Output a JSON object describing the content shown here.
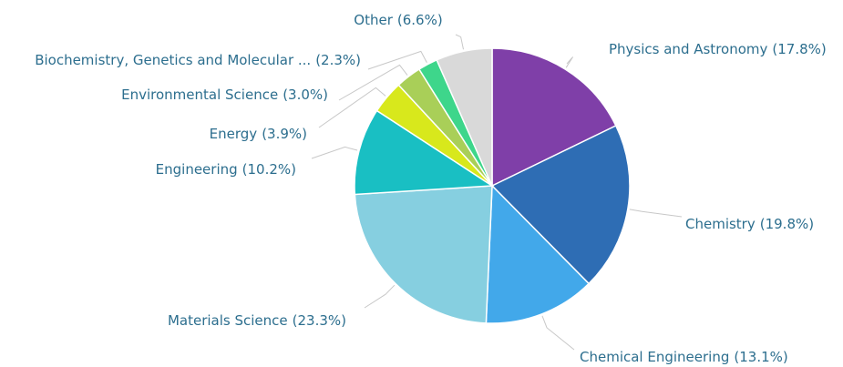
{
  "chart_data": {
    "type": "pie",
    "categories": [
      "Physics and Astronomy",
      "Chemistry",
      "Chemical Engineering",
      "Materials Science",
      "Engineering",
      "Energy",
      "Environmental Science",
      "Biochemistry, Genetics and Molecular ...",
      "Other"
    ],
    "values": [
      17.8,
      19.8,
      13.1,
      23.3,
      10.2,
      3.9,
      3.0,
      2.3,
      6.6
    ],
    "value_labels": [
      "(17.8%)",
      "(19.8%)",
      "(13.1%)",
      "(23.3%)",
      "(10.2%)",
      "(3.9%)",
      "(3.0%)",
      "(2.3%)",
      "(6.6%)"
    ],
    "colors": [
      "#7f3fa8",
      "#2e6db4",
      "#42a8ea",
      "#86cfe0",
      "#19bfc3",
      "#d8e81c",
      "#a9cf58",
      "#3ed68b",
      "#d9d9d9"
    ]
  }
}
